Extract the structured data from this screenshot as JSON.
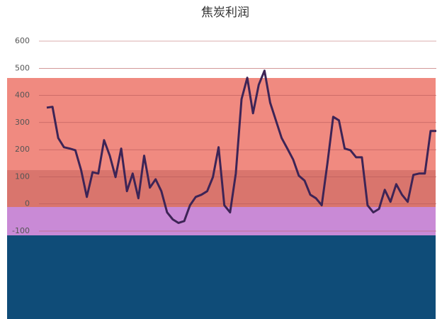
{
  "chart_data": {
    "type": "line",
    "title": "焦炭利润",
    "categories": [
      null,
      null,
      null,
      null,
      null,
      null,
      null,
      null,
      null,
      null,
      null,
      null,
      null,
      null,
      null,
      null,
      null,
      null,
      null,
      null,
      null,
      null,
      null,
      null,
      null,
      null,
      null,
      null,
      null,
      null,
      null,
      null,
      null,
      null,
      null,
      null,
      null,
      null,
      null,
      null,
      null,
      null,
      null,
      null,
      null,
      null,
      null,
      null,
      null,
      null,
      null,
      null,
      null,
      null,
      null,
      null,
      null,
      null,
      null,
      null,
      null,
      null,
      null,
      null,
      null,
      null,
      null,
      null,
      null
    ],
    "series": [
      {
        "name": null,
        "color": "#3d2456",
        "values": [
          355,
          358,
          243,
          209,
          204,
          198,
          125,
          26,
          117,
          112,
          235,
          178,
          99,
          204,
          47,
          112,
          21,
          178,
          60,
          91,
          47,
          -31,
          -57,
          -70,
          -63,
          -5,
          26,
          34,
          47,
          99,
          209,
          -5,
          -31,
          112,
          386,
          465,
          334,
          439,
          491,
          373,
          308,
          243,
          204,
          164,
          104,
          86,
          34,
          21,
          -5,
          151,
          321,
          308,
          204,
          198,
          172,
          172,
          -5,
          -31,
          -18,
          52,
          8,
          73,
          34,
          8,
          107,
          112,
          112,
          269,
          269
        ]
      }
    ],
    "ylim": [
      -100,
      600
    ],
    "yticks": [
      -100,
      0,
      100,
      200,
      300,
      400,
      500,
      600
    ],
    "grid": true
  }
}
